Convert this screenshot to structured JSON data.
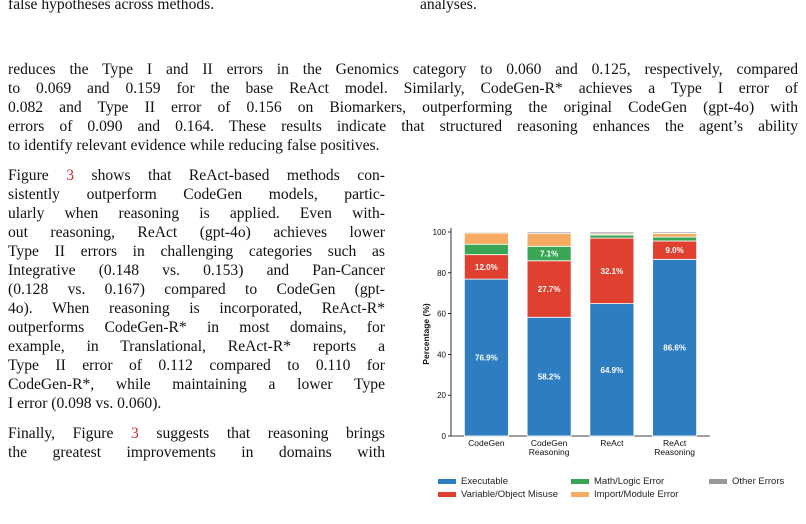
{
  "top_text": {
    "left": "false hypotheses across methods.",
    "right": "analyses."
  },
  "paragraph1": {
    "lines": [
      "reduces the Type I and II errors in the Genomics category to 0.060 and 0.125, respectively, compared",
      "to 0.069 and 0.159 for the base ReAct model. Similarly, CodeGen-R* achieves a Type I error of",
      "0.082 and Type II error of 0.156 on Biomarkers, outperforming the original CodeGen (gpt-4o) with",
      "errors of 0.090 and 0.164. These results indicate that structured reasoning enhances the agent’s ability",
      "to identify relevant evidence while reducing false positives."
    ]
  },
  "paragraph2": {
    "line1_pre": "Figure ",
    "line1_ref": "3",
    "line1_post": " shows that ReAct-based methods con-",
    "lines": [
      "sistently outperform CodeGen models, partic-",
      "ularly when reasoning is applied. Even with-",
      "out reasoning, ReAct (gpt-4o) achieves lower",
      "Type II errors in challenging categories such as",
      "Integrative (0.148 vs. 0.153) and Pan-Cancer",
      "(0.128 vs. 0.167) compared to CodeGen (gpt-",
      "4o). When reasoning is incorporated, ReAct-R*",
      "outperforms CodeGen-R* in most domains, for",
      "example, in Translational, ReAct-R* reports a",
      "Type II error of 0.112 compared to 0.110 for",
      "CodeGen-R*, while maintaining a lower Type",
      "I error (0.098 vs. 0.060)."
    ]
  },
  "paragraph3": {
    "line1_pre": "Finally, Figure ",
    "line1_ref": "3",
    "line1_post": " suggests that reasoning brings",
    "line2": "the greatest improvements in domains with"
  },
  "chart_data": {
    "type": "bar",
    "stacked": true,
    "categories": [
      "CodeGen",
      "CodeGen\nReasoning",
      "ReAct",
      "ReAct\nReasoning"
    ],
    "category_lines": [
      [
        "CodeGen"
      ],
      [
        "CodeGen",
        "Reasoning"
      ],
      [
        "ReAct"
      ],
      [
        "ReAct",
        "Reasoning"
      ]
    ],
    "ylabel": "Percentage (%)",
    "ylim": [
      0,
      100
    ],
    "yticks": [
      "0",
      "20",
      "40",
      "60",
      "80",
      "100"
    ],
    "grid": false,
    "legend_position": "bottom",
    "series": [
      {
        "name": "Executable",
        "color": "#2e7dc1",
        "values": [
          76.9,
          58.2,
          64.9,
          86.6
        ],
        "labels": [
          "76.9%",
          "58.2%",
          "64.9%",
          "86.6%"
        ]
      },
      {
        "name": "Variable/Object Misuse",
        "color": "#e0402f",
        "values": [
          12.0,
          27.7,
          32.1,
          9.0
        ],
        "labels": [
          "12.0%",
          "27.7%",
          "32.1%",
          "9.0%"
        ]
      },
      {
        "name": "Math/Logic Error",
        "color": "#3aa655",
        "values": [
          5.1,
          7.1,
          1.5,
          1.9
        ],
        "labels": [
          "",
          "7.1%",
          "",
          ""
        ]
      },
      {
        "name": "Import/Module Error",
        "color": "#f6ab61",
        "values": [
          5.5,
          6.2,
          0.6,
          1.8
        ],
        "labels": [
          "",
          "",
          "",
          ""
        ]
      },
      {
        "name": "Other Errors",
        "color": "#999999",
        "values": [
          0.5,
          0.8,
          0.9,
          0.7
        ],
        "labels": [
          "",
          "",
          "",
          ""
        ]
      }
    ]
  }
}
